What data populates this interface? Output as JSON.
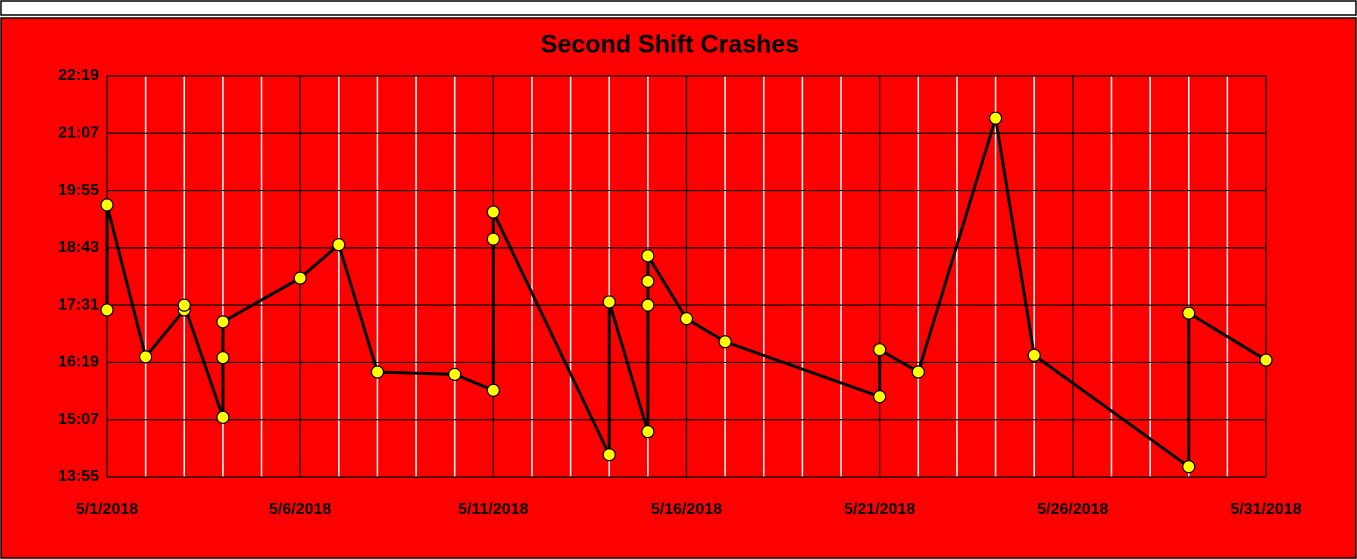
{
  "chart_data": {
    "type": "line",
    "title": "Second Shift Crashes",
    "x": [
      "2018-05-01",
      "2018-05-01",
      "2018-05-02",
      "2018-05-03",
      "2018-05-03",
      "2018-05-04",
      "2018-05-04",
      "2018-05-04",
      "2018-05-06",
      "2018-05-07",
      "2018-05-08",
      "2018-05-10",
      "2018-05-11",
      "2018-05-11",
      "2018-05-11",
      "2018-05-14",
      "2018-05-14",
      "2018-05-15",
      "2018-05-15",
      "2018-05-15",
      "2018-05-15",
      "2018-05-16",
      "2018-05-17",
      "2018-05-21",
      "2018-05-21",
      "2018-05-22",
      "2018-05-24",
      "2018-05-25",
      "2018-05-29",
      "2018-05-29",
      "2018-05-31"
    ],
    "values": [
      1045,
      1177,
      986,
      1045,
      1051,
      910,
      985,
      1030,
      1085,
      1127,
      967,
      964,
      944,
      1134,
      1168,
      863,
      1055,
      892,
      1051,
      1081,
      1113,
      1034,
      1005,
      936,
      995,
      967,
      1286,
      988,
      848,
      1041,
      982
    ],
    "line_color": "#000000",
    "marker_color": "#ffff00",
    "background": "#ff0000",
    "xlim": [
      "2018-05-01",
      "2018-05-31"
    ],
    "xticks": [
      {
        "value": "2018-05-01",
        "label": "5/1/2018"
      },
      {
        "value": "2018-05-06",
        "label": "5/6/2018"
      },
      {
        "value": "2018-05-11",
        "label": "5/11/2018"
      },
      {
        "value": "2018-05-16",
        "label": "5/16/2018"
      },
      {
        "value": "2018-05-21",
        "label": "5/21/2018"
      },
      {
        "value": "2018-05-26",
        "label": "5/26/2018"
      },
      {
        "value": "2018-05-31",
        "label": "5/31/2018"
      }
    ],
    "xminorticks": [
      "2018-05-02",
      "2018-05-03",
      "2018-05-04",
      "2018-05-05",
      "2018-05-07",
      "2018-05-08",
      "2018-05-09",
      "2018-05-10",
      "2018-05-12",
      "2018-05-13",
      "2018-05-14",
      "2018-05-15",
      "2018-05-17",
      "2018-05-18",
      "2018-05-19",
      "2018-05-20",
      "2018-05-22",
      "2018-05-23",
      "2018-05-24",
      "2018-05-25",
      "2018-05-27",
      "2018-05-28",
      "2018-05-29",
      "2018-05-30"
    ],
    "ylim": [
      835,
      1339
    ],
    "yticks": [
      {
        "value": 835,
        "label": "13:55"
      },
      {
        "value": 907,
        "label": "15:07"
      },
      {
        "value": 979,
        "label": "16:19"
      },
      {
        "value": 1051,
        "label": "17:31"
      },
      {
        "value": 1123,
        "label": "18:43"
      },
      {
        "value": 1195,
        "label": "19:55"
      },
      {
        "value": 1267,
        "label": "21:07"
      },
      {
        "value": 1339,
        "label": "22:19"
      }
    ],
    "grid": true
  }
}
